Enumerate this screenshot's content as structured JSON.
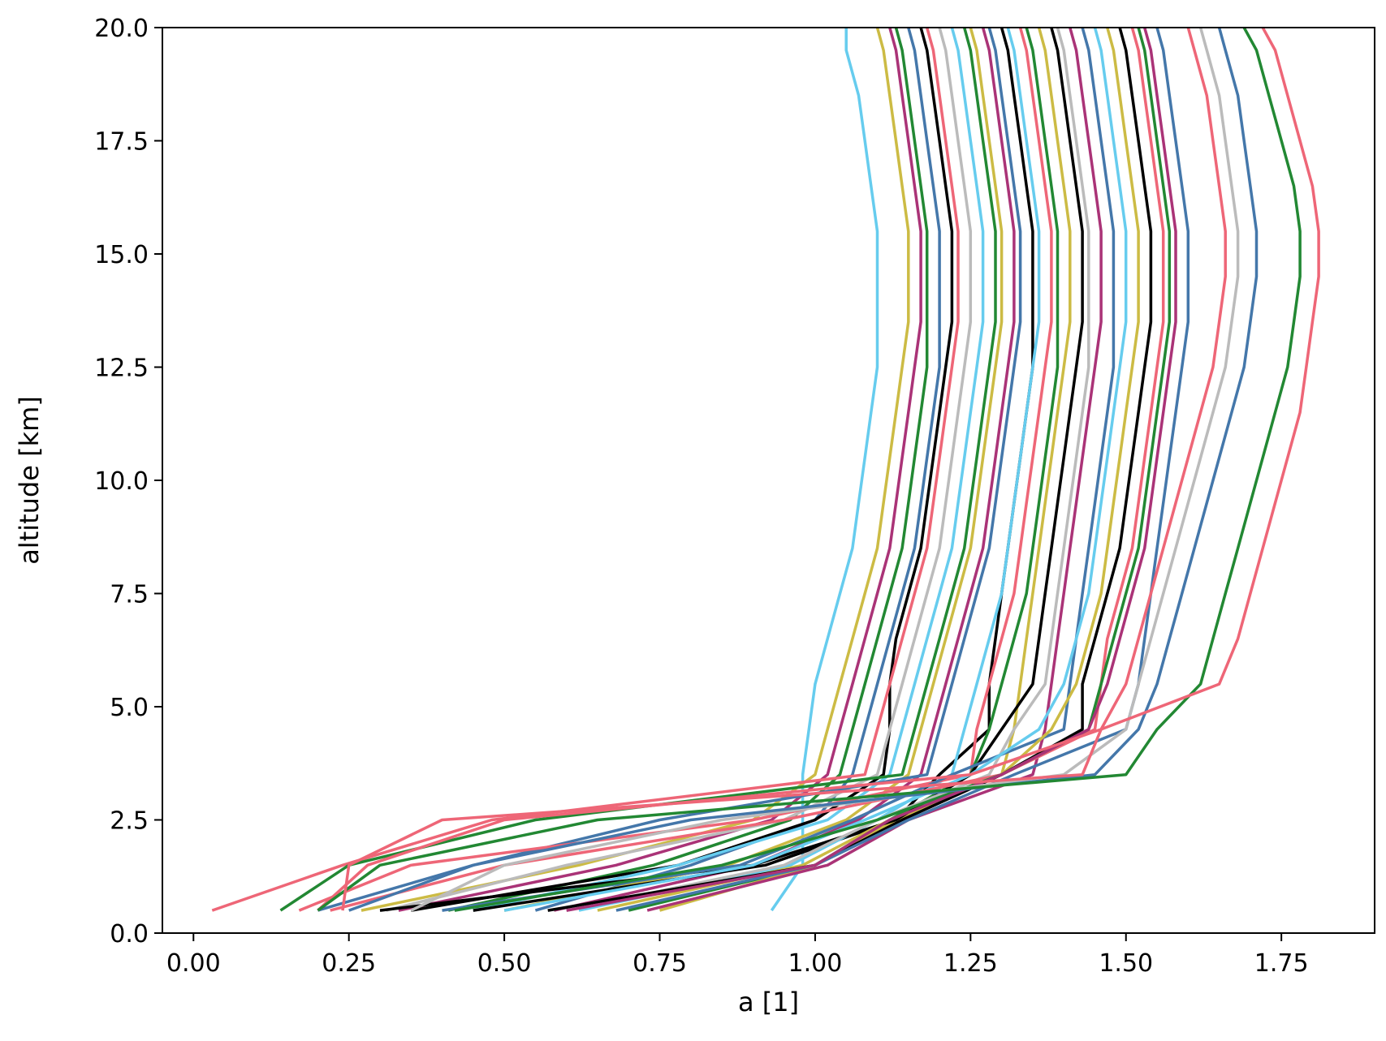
{
  "chart_data": {
    "type": "line",
    "title": "",
    "xlabel": "a [1]",
    "ylabel": "altitude [km]",
    "xlim": [
      -0.05,
      1.9
    ],
    "ylim": [
      0,
      20
    ],
    "x_ticks": [
      "0.00",
      "0.25",
      "0.50",
      "0.75",
      "1.00",
      "1.25",
      "1.50",
      "1.75"
    ],
    "x_tick_values": [
      0,
      0.25,
      0.5,
      0.75,
      1.0,
      1.25,
      1.5,
      1.75
    ],
    "y_ticks": [
      "0.0",
      "2.5",
      "5.0",
      "7.5",
      "10.0",
      "12.5",
      "15.0",
      "17.5",
      "20.0"
    ],
    "y_tick_values": [
      0,
      2.5,
      5.0,
      7.5,
      10.0,
      12.5,
      15.0,
      17.5,
      20.0
    ],
    "grid": false,
    "legend": "none",
    "altitudes_km": [
      0.5,
      1.5,
      2.5,
      3.5,
      4.5,
      5.5,
      6.5,
      7.5,
      8.5,
      9.5,
      10.5,
      11.5,
      12.5,
      13.5,
      14.5,
      15.5,
      16.5,
      17.5,
      18.5,
      19.5,
      20.0
    ],
    "palette": [
      "#ee6677",
      "#228833",
      "#4477aa",
      "#66ccee",
      "#ccbb44",
      "#aa3377",
      "#bbbbbb",
      "#000000"
    ],
    "series": [
      {
        "color": "#66ccee",
        "values": [
          0.93,
          0.98,
          0.98,
          0.98,
          0.99,
          1.0,
          1.02,
          1.04,
          1.06,
          1.07,
          1.08,
          1.09,
          1.1,
          1.1,
          1.1,
          1.1,
          1.09,
          1.08,
          1.07,
          1.05,
          1.05
        ]
      },
      {
        "color": "#ccbb44",
        "values": [
          0.27,
          0.62,
          0.9,
          1.0,
          1.02,
          1.04,
          1.06,
          1.08,
          1.1,
          1.11,
          1.12,
          1.13,
          1.14,
          1.15,
          1.15,
          1.15,
          1.14,
          1.13,
          1.12,
          1.11,
          1.1
        ]
      },
      {
        "color": "#aa3377",
        "values": [
          0.33,
          0.68,
          0.93,
          1.02,
          1.04,
          1.06,
          1.08,
          1.1,
          1.12,
          1.13,
          1.14,
          1.15,
          1.16,
          1.17,
          1.17,
          1.17,
          1.16,
          1.15,
          1.14,
          1.13,
          1.12
        ]
      },
      {
        "color": "#228833",
        "values": [
          0.41,
          0.74,
          0.96,
          1.04,
          1.06,
          1.08,
          1.1,
          1.12,
          1.14,
          1.15,
          1.16,
          1.17,
          1.18,
          1.18,
          1.18,
          1.18,
          1.17,
          1.16,
          1.15,
          1.14,
          1.13
        ]
      },
      {
        "color": "#4477aa",
        "values": [
          0.55,
          0.8,
          1.0,
          1.06,
          1.08,
          1.1,
          1.12,
          1.14,
          1.16,
          1.17,
          1.18,
          1.19,
          1.2,
          1.2,
          1.2,
          1.2,
          1.19,
          1.18,
          1.17,
          1.16,
          1.15
        ]
      },
      {
        "color": "#000000",
        "values": [
          0.35,
          0.78,
          1.0,
          1.11,
          1.12,
          1.12,
          1.13,
          1.15,
          1.17,
          1.18,
          1.19,
          1.2,
          1.21,
          1.22,
          1.22,
          1.22,
          1.21,
          1.2,
          1.19,
          1.18,
          1.17
        ]
      },
      {
        "color": "#ee6677",
        "values": [
          0.03,
          0.24,
          0.48,
          1.08,
          1.1,
          1.12,
          1.14,
          1.16,
          1.18,
          1.19,
          1.2,
          1.21,
          1.22,
          1.23,
          1.23,
          1.23,
          1.22,
          1.21,
          1.2,
          1.19,
          1.18
        ]
      },
      {
        "color": "#bbbbbb",
        "values": [
          0.31,
          0.6,
          0.95,
          1.1,
          1.12,
          1.14,
          1.16,
          1.18,
          1.2,
          1.21,
          1.22,
          1.23,
          1.24,
          1.25,
          1.25,
          1.25,
          1.24,
          1.23,
          1.22,
          1.21,
          1.2
        ]
      },
      {
        "color": "#66ccee",
        "values": [
          0.45,
          0.78,
          1.02,
          1.12,
          1.14,
          1.16,
          1.18,
          1.2,
          1.22,
          1.23,
          1.24,
          1.25,
          1.26,
          1.27,
          1.27,
          1.27,
          1.26,
          1.25,
          1.24,
          1.23,
          1.22
        ]
      },
      {
        "color": "#228833",
        "values": [
          0.14,
          0.25,
          0.55,
          1.14,
          1.16,
          1.18,
          1.2,
          1.22,
          1.24,
          1.25,
          1.26,
          1.27,
          1.28,
          1.29,
          1.29,
          1.29,
          1.28,
          1.27,
          1.26,
          1.25,
          1.24
        ]
      },
      {
        "color": "#ccbb44",
        "values": [
          0.5,
          0.86,
          1.05,
          1.15,
          1.17,
          1.19,
          1.21,
          1.23,
          1.25,
          1.26,
          1.27,
          1.28,
          1.29,
          1.3,
          1.3,
          1.3,
          1.29,
          1.28,
          1.27,
          1.26,
          1.25
        ]
      },
      {
        "color": "#aa3377",
        "values": [
          0.58,
          0.9,
          1.07,
          1.17,
          1.19,
          1.21,
          1.23,
          1.25,
          1.27,
          1.28,
          1.29,
          1.3,
          1.31,
          1.32,
          1.32,
          1.32,
          1.31,
          1.3,
          1.29,
          1.28,
          1.27
        ]
      },
      {
        "color": "#4477aa",
        "values": [
          0.2,
          0.45,
          0.75,
          1.18,
          1.2,
          1.22,
          1.24,
          1.26,
          1.28,
          1.29,
          1.3,
          1.31,
          1.32,
          1.33,
          1.33,
          1.33,
          1.32,
          1.31,
          1.3,
          1.29,
          1.28
        ]
      },
      {
        "color": "#000000",
        "values": [
          0.45,
          0.92,
          1.13,
          1.2,
          1.28,
          1.28,
          1.29,
          1.3,
          1.31,
          1.32,
          1.33,
          1.34,
          1.35,
          1.35,
          1.35,
          1.35,
          1.34,
          1.33,
          1.32,
          1.31,
          1.3
        ]
      },
      {
        "color": "#66ccee",
        "values": [
          0.62,
          0.96,
          1.1,
          1.22,
          1.24,
          1.26,
          1.28,
          1.3,
          1.31,
          1.32,
          1.33,
          1.34,
          1.35,
          1.36,
          1.36,
          1.36,
          1.35,
          1.34,
          1.33,
          1.32,
          1.31
        ]
      },
      {
        "color": "#ee6677",
        "values": [
          0.17,
          0.35,
          0.9,
          1.25,
          1.26,
          1.28,
          1.3,
          1.32,
          1.33,
          1.34,
          1.35,
          1.36,
          1.37,
          1.38,
          1.38,
          1.38,
          1.37,
          1.36,
          1.35,
          1.34,
          1.33
        ]
      },
      {
        "color": "#228833",
        "values": [
          0.7,
          1.0,
          1.12,
          1.25,
          1.28,
          1.3,
          1.32,
          1.34,
          1.35,
          1.36,
          1.37,
          1.38,
          1.39,
          1.39,
          1.39,
          1.39,
          1.38,
          1.37,
          1.36,
          1.35,
          1.34
        ]
      },
      {
        "color": "#ccbb44",
        "values": [
          0.75,
          1.0,
          1.13,
          1.3,
          1.32,
          1.33,
          1.34,
          1.35,
          1.36,
          1.37,
          1.38,
          1.39,
          1.4,
          1.41,
          1.41,
          1.41,
          1.4,
          1.39,
          1.38,
          1.37,
          1.36
        ]
      },
      {
        "color": "#000000",
        "values": [
          0.3,
          0.9,
          1.13,
          1.25,
          1.3,
          1.35,
          1.36,
          1.37,
          1.38,
          1.39,
          1.4,
          1.41,
          1.42,
          1.43,
          1.43,
          1.43,
          1.42,
          1.41,
          1.4,
          1.39,
          1.38
        ]
      },
      {
        "color": "#bbbbbb",
        "values": [
          0.6,
          0.95,
          1.1,
          1.28,
          1.32,
          1.37,
          1.38,
          1.39,
          1.4,
          1.41,
          1.42,
          1.43,
          1.44,
          1.44,
          1.44,
          1.44,
          1.43,
          1.42,
          1.41,
          1.4,
          1.39
        ]
      },
      {
        "color": "#aa3377",
        "values": [
          0.73,
          1.02,
          1.15,
          1.35,
          1.37,
          1.38,
          1.39,
          1.4,
          1.41,
          1.42,
          1.43,
          1.44,
          1.45,
          1.46,
          1.46,
          1.46,
          1.45,
          1.44,
          1.43,
          1.42,
          1.41
        ]
      },
      {
        "color": "#4477aa",
        "values": [
          0.4,
          0.88,
          1.06,
          1.22,
          1.4,
          1.41,
          1.42,
          1.43,
          1.44,
          1.45,
          1.46,
          1.47,
          1.48,
          1.48,
          1.48,
          1.48,
          1.47,
          1.46,
          1.45,
          1.44,
          1.43
        ]
      },
      {
        "color": "#66ccee",
        "values": [
          0.5,
          0.9,
          1.08,
          1.25,
          1.36,
          1.4,
          1.42,
          1.44,
          1.45,
          1.46,
          1.47,
          1.48,
          1.49,
          1.5,
          1.5,
          1.5,
          1.49,
          1.48,
          1.47,
          1.46,
          1.45
        ]
      },
      {
        "color": "#ccbb44",
        "values": [
          0.65,
          0.98,
          1.12,
          1.3,
          1.38,
          1.42,
          1.44,
          1.46,
          1.47,
          1.48,
          1.49,
          1.5,
          1.51,
          1.52,
          1.52,
          1.52,
          1.51,
          1.5,
          1.49,
          1.48,
          1.47
        ]
      },
      {
        "color": "#000000",
        "values": [
          0.57,
          1.0,
          1.14,
          1.3,
          1.43,
          1.43,
          1.45,
          1.47,
          1.49,
          1.5,
          1.51,
          1.52,
          1.53,
          1.54,
          1.54,
          1.54,
          1.53,
          1.52,
          1.51,
          1.5,
          1.49
        ]
      },
      {
        "color": "#ee6677",
        "values": [
          0.22,
          0.5,
          0.95,
          1.3,
          1.45,
          1.46,
          1.47,
          1.49,
          1.51,
          1.52,
          1.53,
          1.54,
          1.55,
          1.56,
          1.56,
          1.56,
          1.55,
          1.54,
          1.53,
          1.52,
          1.51
        ]
      },
      {
        "color": "#228833",
        "values": [
          0.42,
          0.85,
          1.1,
          1.3,
          1.44,
          1.46,
          1.48,
          1.5,
          1.52,
          1.53,
          1.54,
          1.55,
          1.56,
          1.57,
          1.57,
          1.57,
          1.56,
          1.55,
          1.54,
          1.53,
          1.52
        ]
      },
      {
        "color": "#4477aa",
        "values": [
          0.68,
          1.0,
          1.15,
          1.32,
          1.5,
          1.52,
          1.53,
          1.54,
          1.55,
          1.56,
          1.57,
          1.58,
          1.59,
          1.6,
          1.6,
          1.6,
          1.59,
          1.58,
          1.57,
          1.56,
          1.55
        ]
      },
      {
        "color": "#aa3377",
        "values": [
          0.6,
          1.0,
          1.12,
          1.3,
          1.44,
          1.47,
          1.49,
          1.51,
          1.53,
          1.54,
          1.55,
          1.56,
          1.57,
          1.58,
          1.58,
          1.58,
          1.57,
          1.56,
          1.55,
          1.54,
          1.53
        ]
      },
      {
        "color": "#ee6677",
        "values": [
          0.2,
          0.28,
          0.5,
          1.25,
          1.46,
          1.5,
          1.52,
          1.54,
          1.56,
          1.58,
          1.6,
          1.62,
          1.64,
          1.65,
          1.66,
          1.66,
          1.65,
          1.64,
          1.63,
          1.61,
          1.6
        ]
      },
      {
        "color": "#bbbbbb",
        "values": [
          0.35,
          0.5,
          0.85,
          1.4,
          1.5,
          1.52,
          1.54,
          1.56,
          1.58,
          1.6,
          1.62,
          1.64,
          1.66,
          1.67,
          1.68,
          1.68,
          1.67,
          1.66,
          1.65,
          1.63,
          1.62
        ]
      },
      {
        "color": "#4477aa",
        "values": [
          0.25,
          0.45,
          0.8,
          1.45,
          1.52,
          1.55,
          1.57,
          1.59,
          1.61,
          1.63,
          1.65,
          1.67,
          1.69,
          1.7,
          1.71,
          1.71,
          1.7,
          1.69,
          1.68,
          1.66,
          1.65
        ]
      },
      {
        "color": "#228833",
        "values": [
          0.2,
          0.3,
          0.65,
          1.5,
          1.55,
          1.62,
          1.64,
          1.66,
          1.68,
          1.7,
          1.72,
          1.74,
          1.76,
          1.77,
          1.78,
          1.78,
          1.77,
          1.75,
          1.73,
          1.71,
          1.69
        ]
      },
      {
        "color": "#ee6677",
        "values": [
          0.24,
          0.25,
          0.4,
          1.43,
          1.46,
          1.65,
          1.68,
          1.7,
          1.72,
          1.74,
          1.76,
          1.78,
          1.79,
          1.8,
          1.81,
          1.81,
          1.8,
          1.78,
          1.76,
          1.74,
          1.72
        ]
      }
    ]
  }
}
